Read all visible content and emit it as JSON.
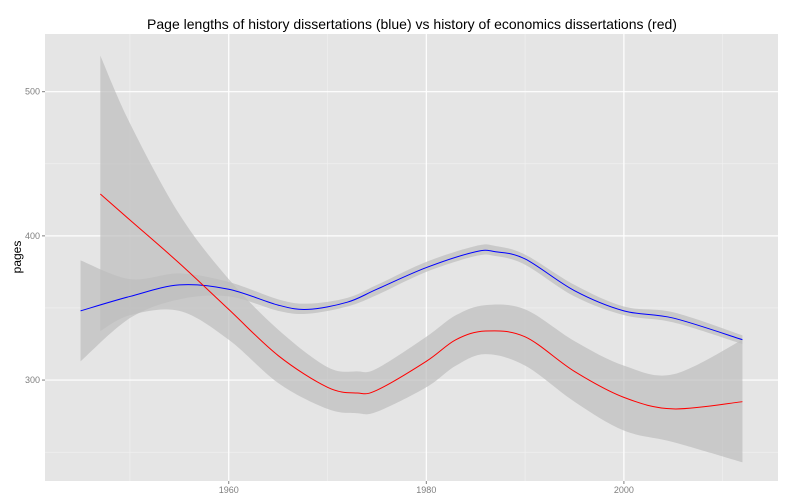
{
  "chart_data": {
    "type": "line",
    "title": "Page lengths of history dissertations (blue) vs history of economics dissertations (red)",
    "xlabel": "",
    "ylabel": "pages",
    "xlim": [
      1941.4,
      2015.6
    ],
    "ylim": [
      230,
      540
    ],
    "x_ticks": [
      1960,
      1980,
      2000
    ],
    "x_tick_labels": [
      "1960",
      "1980",
      "2000"
    ],
    "y_ticks": [
      300,
      400,
      500
    ],
    "y_tick_labels": [
      "300",
      "400",
      "500"
    ],
    "grid": true,
    "legend": "none",
    "colors": {
      "panel_bg": "#e5e5e5",
      "grid_major": "#ffffff",
      "grid_minor": "#f2f2f2",
      "ribbon": "#bdbdbd",
      "blue": "#0000ff",
      "red": "#ff0000"
    },
    "series": [
      {
        "color": "#0000ff",
        "x": [
          1945,
          1950,
          1955,
          1960,
          1965,
          1968,
          1972,
          1975,
          1980,
          1985,
          1987,
          1990,
          1995,
          2000,
          2005,
          2012
        ],
        "y": [
          348,
          358,
          366,
          363,
          352,
          349,
          354,
          363,
          378,
          389,
          389,
          384,
          362,
          348,
          343,
          328
        ],
        "lower": [
          313,
          343,
          356,
          358,
          348,
          346,
          351,
          359,
          375,
          386,
          386,
          380,
          358,
          345,
          340,
          325
        ],
        "upper": [
          383,
          370,
          374,
          368,
          356,
          353,
          357,
          366,
          382,
          393,
          393,
          387,
          366,
          351,
          347,
          331
        ]
      },
      {
        "color": "#ff0000",
        "x": [
          1947,
          1950,
          1955,
          1960,
          1965,
          1970,
          1973,
          1975,
          1980,
          1983,
          1986,
          1990,
          1995,
          2000,
          2005,
          2012
        ],
        "y": [
          429,
          411,
          381,
          349,
          317,
          295,
          291,
          293,
          313,
          328,
          334,
          330,
          306,
          288,
          280,
          285
        ],
        "lower": [
          334,
          345,
          348,
          328,
          298,
          280,
          277,
          278,
          295,
          310,
          318,
          310,
          285,
          265,
          257,
          243
        ],
        "upper": [
          525,
          478,
          415,
          370,
          335,
          309,
          306,
          308,
          330,
          345,
          352,
          349,
          327,
          310,
          304,
          328
        ]
      }
    ]
  }
}
